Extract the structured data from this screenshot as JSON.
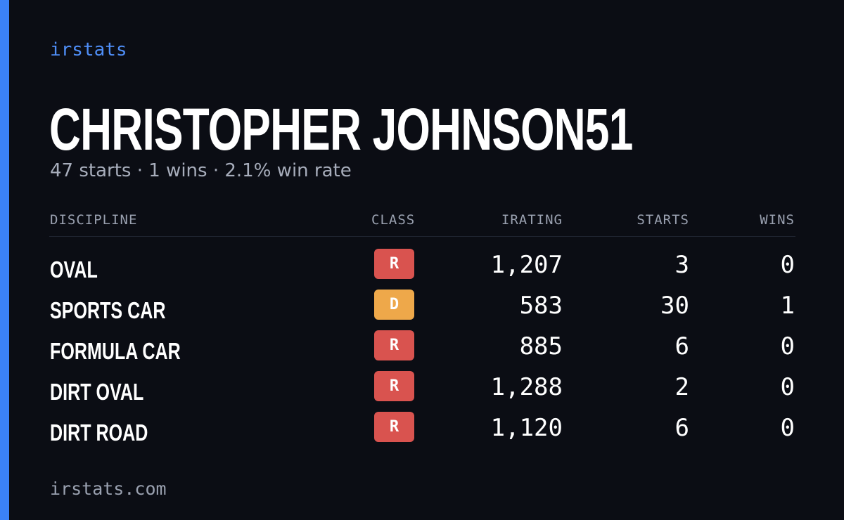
{
  "brand": "irstats",
  "player": {
    "name": "CHRISTOPHER JOHNSON51",
    "summary": "47 starts · 1 wins · 2.1% win rate"
  },
  "table": {
    "headers": {
      "discipline": "DISCIPLINE",
      "class": "CLASS",
      "irating": "IRATING",
      "starts": "STARTS",
      "wins": "WINS"
    },
    "rows": [
      {
        "discipline": "OVAL",
        "class": "R",
        "irating": "1,207",
        "starts": "3",
        "wins": "0"
      },
      {
        "discipline": "SPORTS CAR",
        "class": "D",
        "irating": "583",
        "starts": "30",
        "wins": "1"
      },
      {
        "discipline": "FORMULA CAR",
        "class": "R",
        "irating": "885",
        "starts": "6",
        "wins": "0"
      },
      {
        "discipline": "DIRT OVAL",
        "class": "R",
        "irating": "1,288",
        "starts": "2",
        "wins": "0"
      },
      {
        "discipline": "DIRT ROAD",
        "class": "R",
        "irating": "1,120",
        "starts": "6",
        "wins": "0"
      }
    ]
  },
  "colors": {
    "accent": "#3b82f6",
    "class_R": "#d9534f",
    "class_D": "#eea84a"
  },
  "footer": "irstats.com"
}
